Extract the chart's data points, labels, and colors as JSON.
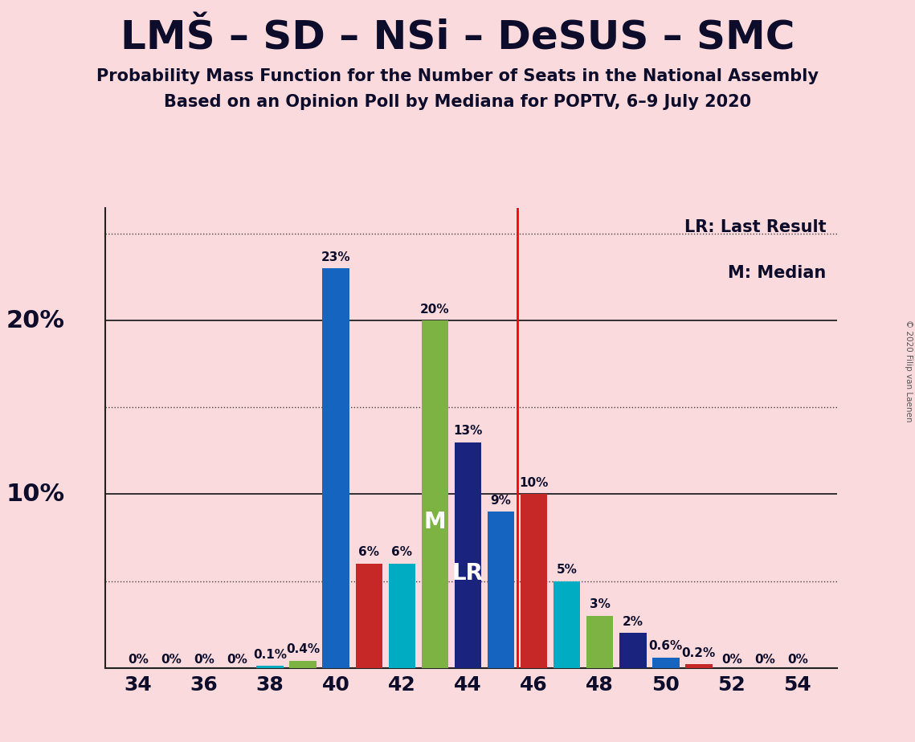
{
  "title": "LMŠ – SD – NSi – DeSUS – SMC",
  "subtitle1": "Probability Mass Function for the Number of Seats in the National Assembly",
  "subtitle2": "Based on an Opinion Poll by Mediana for POPTV, 6–9 July 2020",
  "copyright": "© 2020 Filip van Laenen",
  "background_color": "#FADADD",
  "legend_lr": "LR: Last Result",
  "legend_m": "M: Median",
  "lr_line": 45.5,
  "median_seat": 43,
  "lr_seat": 44,
  "seats": [
    34,
    35,
    36,
    37,
    38,
    39,
    40,
    41,
    42,
    43,
    44,
    45,
    46,
    47,
    48,
    49,
    50,
    51,
    52,
    53,
    54
  ],
  "probs": [
    0.0,
    0.0,
    0.0,
    0.0,
    0.001,
    0.004,
    0.23,
    0.06,
    0.06,
    0.2,
    0.13,
    0.09,
    0.1,
    0.05,
    0.03,
    0.02,
    0.006,
    0.002,
    0.0,
    0.0,
    0.0
  ],
  "bar_colors": [
    "#1565C0",
    "#1565C0",
    "#1565C0",
    "#1565C0",
    "#00ACC1",
    "#7CB342",
    "#1565C0",
    "#C62828",
    "#00ACC1",
    "#7CB342",
    "#1A237E",
    "#1565C0",
    "#C62828",
    "#00ACC1",
    "#7CB342",
    "#1A237E",
    "#1565C0",
    "#C62828",
    "#1565C0",
    "#1565C0",
    "#1565C0"
  ],
  "prob_labels": [
    "0%",
    "0%",
    "0%",
    "0%",
    "0.1%",
    "0.4%",
    "23%",
    "6%",
    "6%",
    "20%",
    "13%",
    "9%",
    "10%",
    "5%",
    "3%",
    "2%",
    "0.6%",
    "0.2%",
    "0%",
    "0%",
    "0%"
  ],
  "show_label": [
    true,
    true,
    true,
    true,
    true,
    true,
    true,
    true,
    true,
    true,
    true,
    true,
    true,
    true,
    true,
    true,
    true,
    true,
    true,
    true,
    true
  ],
  "ylim": [
    0,
    0.265
  ],
  "major_yticks": [
    0.1,
    0.2
  ],
  "minor_yticks": [
    0.05,
    0.15,
    0.25
  ],
  "ytick_labels": [
    [
      0.1,
      "10%"
    ],
    [
      0.2,
      "20%"
    ]
  ],
  "title_color": "#0D0D2B",
  "title_fontsize": 36,
  "subtitle_fontsize": 15,
  "bar_label_fontsize": 11,
  "ylabel_fontsize": 22,
  "xlabel_fontsize": 18,
  "legend_fontsize": 15,
  "zero_label_threshold": 0.0001
}
